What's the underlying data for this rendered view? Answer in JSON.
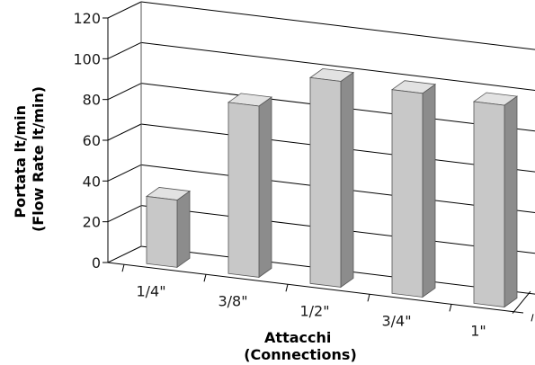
{
  "chart_data": {
    "type": "bar",
    "categories": [
      "1/4\"",
      "3/8\"",
      "1/2\"",
      "3/4\"",
      "1\""
    ],
    "values": [
      33,
      84,
      101,
      100,
      99
    ],
    "ylim": [
      0,
      120
    ],
    "yticks": [
      "0",
      "20",
      "40",
      "60",
      "80",
      "100",
      "120"
    ],
    "xlabel_lines": [
      "Attacchi",
      "(Connections)"
    ],
    "ylabel_lines": [
      "Portata lt/min",
      "(Flow Rate lt/min)"
    ],
    "grid": true,
    "projection": "3d",
    "colors": {
      "bar_front": "#c8c8c8",
      "bar_top": "#e2e2e2",
      "bar_side": "#8c8c8c",
      "bar_edge": "#555555"
    }
  }
}
